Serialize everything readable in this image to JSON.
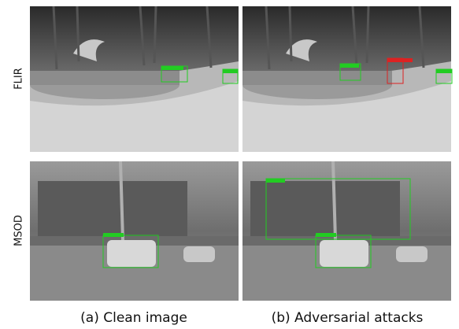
{
  "rows": [
    {
      "label": "FLIR"
    },
    {
      "label": "MSOD"
    }
  ],
  "columns": [
    {
      "caption": "(a) Clean image"
    },
    {
      "caption": "(b) Adversarial attacks"
    }
  ]
}
